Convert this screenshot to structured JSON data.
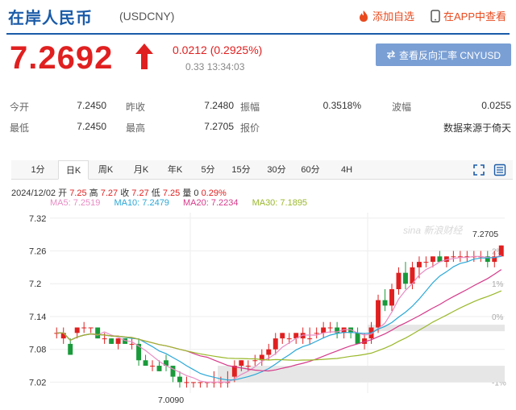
{
  "header": {
    "title": "在岸人民币",
    "code": "(USDCNY)",
    "favorite_label": "添加自选",
    "app_label": "在APP中查看"
  },
  "quote": {
    "price": "7.2692",
    "change": "0.0212 (0.2925%)",
    "time": "0.33 13:34:03",
    "reverse_button": "查看反向汇率 CNYUSD"
  },
  "stats": {
    "row1": [
      {
        "label": "今开",
        "value": "7.2450"
      },
      {
        "label": "昨收",
        "value": "7.2480"
      },
      {
        "label": "振幅",
        "value": "0.3518%"
      },
      {
        "label": "波幅",
        "value": "0.0255"
      }
    ],
    "row2": [
      {
        "label": "最低",
        "value": "7.2450"
      },
      {
        "label": "最高",
        "value": "7.2705"
      },
      {
        "label": "报价",
        "value": "数据来源于倚天"
      }
    ]
  },
  "tabs": [
    "1分",
    "日K",
    "周K",
    "月K",
    "年K",
    "5分",
    "15分",
    "30分",
    "60分",
    "4H"
  ],
  "active_tab": "日K",
  "ohlc": {
    "date": "2024/12/02",
    "open_label": "开",
    "open": "7.25",
    "high_label": "高",
    "high": "7.27",
    "close_label": "收",
    "close": "7.27",
    "low_label": "低",
    "low": "7.25",
    "vol_label": "量",
    "vol": "0",
    "pct": "0.29%"
  },
  "ma": [
    {
      "label": "MA5: 7.2519",
      "color": "#e88cc4"
    },
    {
      "label": "MA10: 7.2479",
      "color": "#2aa8d8"
    },
    {
      "label": "MA20: 7.2234",
      "color": "#d63a8a"
    },
    {
      "label": "MA30: 7.1895",
      "color": "#9ab82a"
    }
  ],
  "watermark": "sina 新浪财经",
  "chart_data": {
    "type": "candlestick",
    "y_ticks": [
      "7.32",
      "7.26",
      "7.2",
      "7.14",
      "7.08",
      "7.02"
    ],
    "y_ticks_right": [
      "",
      "2%",
      "1%",
      "0%",
      "",
      "-1%"
    ],
    "annotation_high": "7.2705",
    "annotation_low": "7.0090",
    "ylim": [
      7.0,
      7.33
    ],
    "up_color": "#e02020",
    "down_color": "#1a9a3a",
    "candles": [
      [
        7.11,
        7.12,
        7.1,
        7.11
      ],
      [
        7.1,
        7.12,
        7.09,
        7.11
      ],
      [
        7.09,
        7.1,
        7.07,
        7.07
      ],
      [
        7.11,
        7.12,
        7.1,
        7.12
      ],
      [
        7.12,
        7.13,
        7.11,
        7.12
      ],
      [
        7.12,
        7.12,
        7.11,
        7.12
      ],
      [
        7.12,
        7.12,
        7.1,
        7.1
      ],
      [
        7.1,
        7.11,
        7.09,
        7.1
      ],
      [
        7.1,
        7.1,
        7.09,
        7.09
      ],
      [
        7.09,
        7.1,
        7.08,
        7.1
      ],
      [
        7.1,
        7.1,
        7.09,
        7.09
      ],
      [
        7.09,
        7.1,
        7.08,
        7.09
      ],
      [
        7.09,
        7.1,
        7.05,
        7.06
      ],
      [
        7.06,
        7.07,
        7.05,
        7.05
      ],
      [
        7.05,
        7.06,
        7.04,
        7.05
      ],
      [
        7.05,
        7.06,
        7.04,
        7.04
      ],
      [
        7.06,
        7.07,
        7.04,
        7.05
      ],
      [
        7.05,
        7.05,
        7.02,
        7.03
      ],
      [
        7.03,
        7.04,
        7.01,
        7.02
      ],
      [
        7.02,
        7.03,
        7.01,
        7.02
      ],
      [
        7.02,
        7.02,
        7.01,
        7.02
      ],
      [
        7.02,
        7.02,
        7.01,
        7.02
      ],
      [
        7.02,
        7.02,
        7.01,
        7.02
      ],
      [
        7.02,
        7.04,
        7.01,
        7.02
      ],
      [
        7.02,
        7.03,
        7.01,
        7.02
      ],
      [
        7.02,
        7.04,
        7.01,
        7.02
      ],
      [
        7.03,
        7.06,
        7.02,
        7.05
      ],
      [
        7.05,
        7.06,
        7.04,
        7.06
      ],
      [
        7.05,
        7.06,
        7.04,
        7.05
      ],
      [
        7.06,
        7.07,
        7.05,
        7.06
      ],
      [
        7.06,
        7.08,
        7.05,
        7.07
      ],
      [
        7.07,
        7.09,
        7.06,
        7.08
      ],
      [
        7.08,
        7.11,
        7.07,
        7.1
      ],
      [
        7.1,
        7.11,
        7.09,
        7.11
      ],
      [
        7.1,
        7.11,
        7.09,
        7.1
      ],
      [
        7.1,
        7.11,
        7.09,
        7.11
      ],
      [
        7.1,
        7.12,
        7.09,
        7.11
      ],
      [
        7.1,
        7.12,
        7.09,
        7.1
      ],
      [
        7.11,
        7.12,
        7.1,
        7.11
      ],
      [
        7.11,
        7.13,
        7.1,
        7.12
      ],
      [
        7.12,
        7.13,
        7.11,
        7.12
      ],
      [
        7.12,
        7.13,
        7.1,
        7.11
      ],
      [
        7.11,
        7.12,
        7.1,
        7.12
      ],
      [
        7.12,
        7.12,
        7.1,
        7.11
      ],
      [
        7.11,
        7.12,
        7.09,
        7.09
      ],
      [
        7.09,
        7.11,
        7.08,
        7.1
      ],
      [
        7.1,
        7.13,
        7.09,
        7.12
      ],
      [
        7.12,
        7.18,
        7.11,
        7.17
      ],
      [
        7.17,
        7.19,
        7.15,
        7.16
      ],
      [
        7.16,
        7.2,
        7.15,
        7.19
      ],
      [
        7.19,
        7.23,
        7.18,
        7.22
      ],
      [
        7.22,
        7.24,
        7.19,
        7.2
      ],
      [
        7.2,
        7.24,
        7.19,
        7.23
      ],
      [
        7.23,
        7.25,
        7.21,
        7.24
      ],
      [
        7.24,
        7.25,
        7.23,
        7.24
      ],
      [
        7.24,
        7.25,
        7.23,
        7.25
      ],
      [
        7.25,
        7.26,
        7.24,
        7.24
      ],
      [
        7.24,
        7.25,
        7.23,
        7.25
      ],
      [
        7.25,
        7.26,
        7.24,
        7.25
      ],
      [
        7.25,
        7.26,
        7.24,
        7.25
      ],
      [
        7.25,
        7.26,
        7.24,
        7.25
      ],
      [
        7.25,
        7.26,
        7.24,
        7.25
      ],
      [
        7.25,
        7.26,
        7.24,
        7.25
      ],
      [
        7.25,
        7.26,
        7.23,
        7.24
      ],
      [
        7.24,
        7.26,
        7.23,
        7.25
      ],
      [
        7.25,
        7.27,
        7.25,
        7.27
      ]
    ]
  }
}
